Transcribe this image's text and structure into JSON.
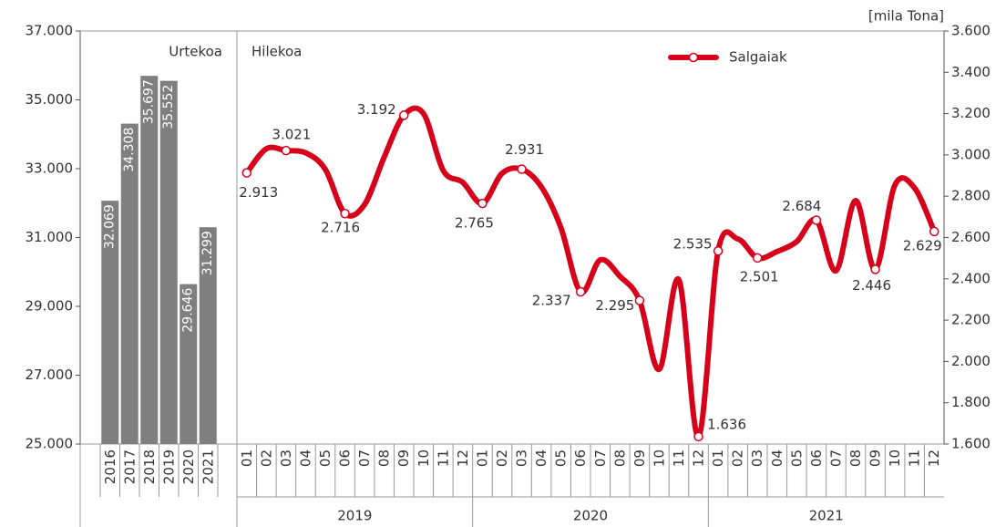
{
  "chart_data": [
    {
      "type": "bar",
      "label": "Urtekoa",
      "categories": [
        "2016",
        "2017",
        "2018",
        "2019",
        "2020",
        "2021"
      ],
      "values": [
        32069,
        34308,
        35697,
        35552,
        29646,
        31299
      ],
      "value_labels": [
        "32.069",
        "34.308",
        "35.697",
        "35.552",
        "29.646",
        "31.299"
      ],
      "color": "#7f7f7f",
      "ylim": [
        25000,
        37000
      ],
      "yticks": [
        {
          "value": 25000,
          "label": "25.000"
        },
        {
          "value": 27000,
          "label": "27.000"
        },
        {
          "value": 29000,
          "label": "29.000"
        },
        {
          "value": 31000,
          "label": "31.000"
        },
        {
          "value": 33000,
          "label": "33.000"
        },
        {
          "value": 35000,
          "label": "35.000"
        },
        {
          "value": 37000,
          "label": "37.000"
        }
      ]
    },
    {
      "type": "line",
      "label": "Hilekoa",
      "unit_label": "[mila Tona]",
      "categories": [
        "01",
        "02",
        "03",
        "04",
        "05",
        "06",
        "07",
        "08",
        "09",
        "10",
        "11",
        "12",
        "01",
        "02",
        "03",
        "04",
        "05",
        "06",
        "07",
        "08",
        "09",
        "10",
        "11",
        "12",
        "01",
        "02",
        "03",
        "04",
        "05",
        "06",
        "07",
        "08",
        "09",
        "10",
        "11",
        "12"
      ],
      "years": [
        "2019",
        "2020",
        "2021"
      ],
      "series": [
        {
          "name": "Salgaiak",
          "color": "#d7001b",
          "axis": "y2",
          "values": [
            2913,
            3030,
            3021,
            3010,
            2930,
            2716,
            2760,
            2990,
            3192,
            3200,
            2925,
            2867,
            2765,
            2911,
            2931,
            2845,
            2646,
            2337,
            2492,
            2412,
            2295,
            1962,
            2395,
            1636,
            2535,
            2593,
            2501,
            2532,
            2580,
            2684,
            2439,
            2779,
            2446,
            2854,
            2840,
            2629
          ],
          "value_labels": [
            "2.913",
            null,
            "3.021",
            null,
            null,
            "2.716",
            null,
            null,
            "3.192",
            null,
            null,
            null,
            "2.765",
            null,
            "2.931",
            null,
            null,
            "2.337",
            null,
            null,
            "2.295",
            null,
            null,
            "1.636",
            "2.535",
            null,
            "2.501",
            null,
            null,
            "2.684",
            null,
            null,
            "2.446",
            null,
            null,
            "2.629"
          ]
        }
      ],
      "y2lim": [
        1600,
        3600
      ],
      "y2ticks": [
        {
          "value": 1600,
          "label": "1.600"
        },
        {
          "value": 1800,
          "label": "1.800"
        },
        {
          "value": 2000,
          "label": "2.000"
        },
        {
          "value": 2200,
          "label": "2.200"
        },
        {
          "value": 2400,
          "label": "2.400"
        },
        {
          "value": 2600,
          "label": "2.600"
        },
        {
          "value": 2800,
          "label": "2.800"
        },
        {
          "value": 3000,
          "label": "3.000"
        },
        {
          "value": 3200,
          "label": "3.200"
        },
        {
          "value": 3400,
          "label": "3.400"
        },
        {
          "value": 3600,
          "label": "3.600"
        }
      ]
    }
  ]
}
